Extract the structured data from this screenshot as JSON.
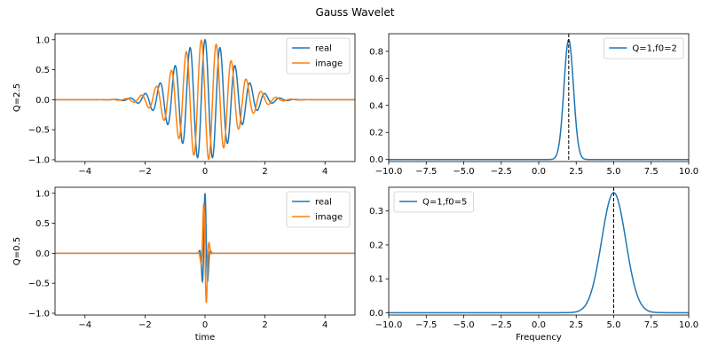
{
  "figure": {
    "title": "Gauss Wavelet"
  },
  "chart_data": [
    {
      "id": "a",
      "type": "line",
      "ylabel": "Q=2.5",
      "xlabel": "",
      "xlim": [
        -5,
        5
      ],
      "ylim": [
        -1.03,
        1.1
      ],
      "xticks": [
        -4,
        -2,
        0,
        2,
        4
      ],
      "yticks": [
        -1.0,
        -0.5,
        0.0,
        0.5,
        1.0
      ],
      "xtick_labels": [
        "−4",
        "−2",
        "0",
        "2",
        "4"
      ],
      "ytick_labels": [
        "−1.0",
        "−0.5",
        "0.0",
        "0.5",
        "1.0"
      ],
      "legend": {
        "loc": "upper right"
      },
      "series": [
        {
          "name": "real",
          "color": "#1f77b4",
          "f0": 2,
          "Q": 2.5,
          "component": "cos"
        },
        {
          "name": "image",
          "color": "#ff7f0e",
          "f0": 2,
          "Q": 2.5,
          "component": "sin"
        }
      ]
    },
    {
      "id": "b",
      "type": "line",
      "xlim": [
        -10,
        10
      ],
      "ylim": [
        -0.015,
        0.93
      ],
      "xticks": [
        -10,
        -7.5,
        -5,
        -2.5,
        0,
        2.5,
        5,
        7.5,
        10
      ],
      "yticks": [
        0.0,
        0.2,
        0.4,
        0.6,
        0.8
      ],
      "xtick_labels": [
        "−10.0",
        "−7.5",
        "−5.0",
        "−2.5",
        "0.0",
        "2.5",
        "5.0",
        "7.5",
        "10.0"
      ],
      "ytick_labels": [
        "0.0",
        "0.2",
        "0.4",
        "0.6",
        "0.8"
      ],
      "legend": {
        "loc": "upper right"
      },
      "vline": 2,
      "series": [
        {
          "name": "Q=1,f0=2",
          "color": "#1f77b4",
          "center": 2,
          "peak": 0.886,
          "sigma": 0.318
        }
      ]
    },
    {
      "id": "c",
      "type": "line",
      "ylabel": "Q=0.5",
      "xlabel": "time",
      "xlim": [
        -5,
        5
      ],
      "ylim": [
        -1.03,
        1.1
      ],
      "xticks": [
        -4,
        -2,
        0,
        2,
        4
      ],
      "yticks": [
        -1.0,
        -0.5,
        0.0,
        0.5,
        1.0
      ],
      "xtick_labels": [
        "−4",
        "−2",
        "0",
        "2",
        "4"
      ],
      "ytick_labels": [
        "−1.0",
        "−0.5",
        "0.0",
        "0.5",
        "1.0"
      ],
      "legend": {
        "loc": "upper right"
      },
      "series": [
        {
          "name": "real",
          "color": "#1f77b4",
          "f0": 5,
          "Q": 0.5,
          "component": "cos"
        },
        {
          "name": "image",
          "color": "#ff7f0e",
          "f0": 5,
          "Q": 0.5,
          "component": "sin"
        }
      ]
    },
    {
      "id": "d",
      "type": "line",
      "xlabel": "Frequency",
      "xlim": [
        -10,
        10
      ],
      "ylim": [
        -0.007,
        0.37
      ],
      "xticks": [
        -10,
        -7.5,
        -5,
        -2.5,
        0,
        2.5,
        5,
        7.5,
        10
      ],
      "yticks": [
        0.0,
        0.1,
        0.2,
        0.3
      ],
      "xtick_labels": [
        "−10.0",
        "−7.5",
        "−5.0",
        "−2.5",
        "0.0",
        "2.5",
        "5.0",
        "7.5",
        "10.0"
      ],
      "ytick_labels": [
        "0.0",
        "0.1",
        "0.2",
        "0.3"
      ],
      "legend": {
        "loc": "upper left"
      },
      "vline": 5,
      "series": [
        {
          "name": "Q=1,f0=5",
          "color": "#1f77b4",
          "center": 5,
          "peak": 0.354,
          "sigma": 0.8
        }
      ]
    }
  ]
}
